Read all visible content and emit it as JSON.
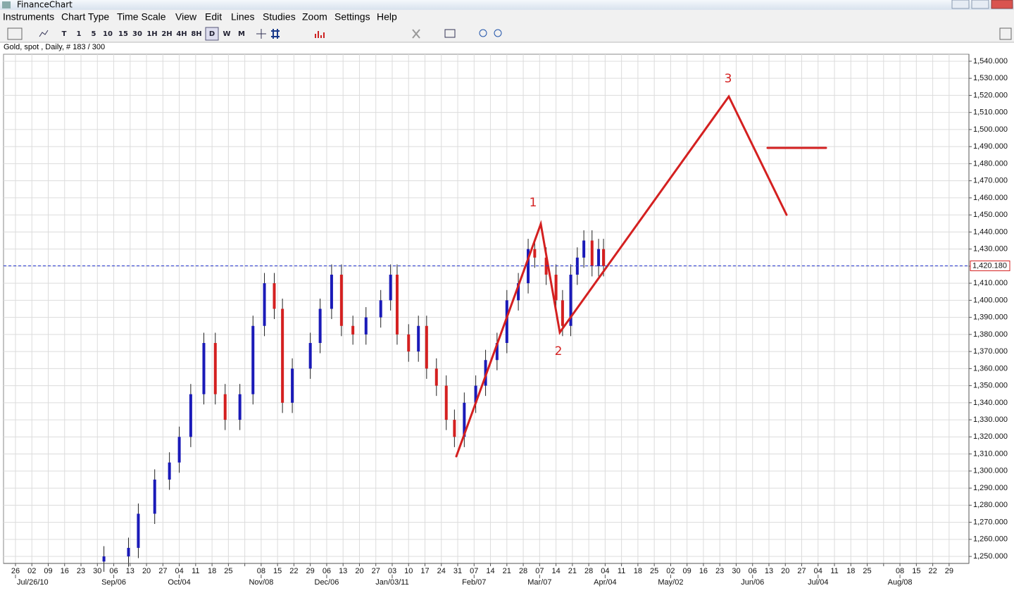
{
  "window_title": "FinanceChart",
  "menu": [
    "Instruments",
    "Chart Type",
    "Time Scale",
    "View",
    "Edit",
    "Lines",
    "Studies",
    "Zoom",
    "Settings",
    "Help"
  ],
  "toolbar": [
    "T",
    "1",
    "5",
    "10",
    "15",
    "30",
    "1H",
    "2H",
    "4H",
    "8H",
    "D",
    "W",
    "M"
  ],
  "chart_data": {
    "type": "candlestick",
    "title": "Gold, spot , Daily, # 183 / 300",
    "xlim": [
      -0.73,
      58.21
    ],
    "ylim": [
      1245.9,
      1544.1
    ],
    "yticks": [
      {
        "value": 1250,
        "label": "1,250.000"
      },
      {
        "value": 1260,
        "label": "1,260.000"
      },
      {
        "value": 1270,
        "label": "1,270.000"
      },
      {
        "value": 1280,
        "label": "1,280.000"
      },
      {
        "value": 1290,
        "label": "1,290.000"
      },
      {
        "value": 1300,
        "label": "1,300.000"
      },
      {
        "value": 1310,
        "label": "1,310.000"
      },
      {
        "value": 1320,
        "label": "1,320.000"
      },
      {
        "value": 1330,
        "label": "1,330.000"
      },
      {
        "value": 1340,
        "label": "1,340.000"
      },
      {
        "value": 1350,
        "label": "1,350.000"
      },
      {
        "value": 1360,
        "label": "1,360.000"
      },
      {
        "value": 1370,
        "label": "1,370.000"
      },
      {
        "value": 1380,
        "label": "1,380.000"
      },
      {
        "value": 1390,
        "label": "1,390.000"
      },
      {
        "value": 1400,
        "label": "1,400.000"
      },
      {
        "value": 1410,
        "label": "1,410.000"
      },
      {
        "value": 1420,
        "label": "1,420.000"
      },
      {
        "value": 1430,
        "label": "1,430.000"
      },
      {
        "value": 1440,
        "label": "1,440.000"
      },
      {
        "value": 1450,
        "label": "1,450.000"
      },
      {
        "value": 1460,
        "label": "1,460.000"
      },
      {
        "value": 1470,
        "label": "1,470.000"
      },
      {
        "value": 1480,
        "label": "1,480.000"
      },
      {
        "value": 1490,
        "label": "1,490.000"
      },
      {
        "value": 1500,
        "label": "1,500.000"
      },
      {
        "value": 1510,
        "label": "1,510.000"
      },
      {
        "value": 1520,
        "label": "1,520.000"
      },
      {
        "value": 1530,
        "label": "1,530.000"
      },
      {
        "value": 1540,
        "label": "1,540.000"
      }
    ],
    "categories": [
      "26",
      "02",
      "09",
      "16",
      "23",
      "30",
      "06",
      "13",
      "20",
      "27",
      "04",
      "11",
      "18",
      "25",
      null,
      "08",
      "15",
      "22",
      "29",
      "06",
      "13",
      "20",
      "27",
      "03",
      "10",
      "17",
      "24",
      "31",
      "07",
      "14",
      "21",
      "28",
      "07",
      "14",
      "21",
      "28",
      "04",
      "11",
      "18",
      "25",
      "02",
      "09",
      "16",
      "23",
      "30",
      "06",
      "13",
      "20",
      "27",
      "04",
      "11",
      "18",
      "25",
      null,
      "08",
      "15",
      "22",
      "29"
    ],
    "month_labels": [
      {
        "value": 0,
        "label": "Jul/26/10"
      },
      {
        "value": 6,
        "label": "Sep/06"
      },
      {
        "value": 10,
        "label": "Oct/04"
      },
      {
        "value": 15,
        "label": "Nov/08"
      },
      {
        "value": 19,
        "label": "Dec/06"
      },
      {
        "value": 23,
        "label": "Jan/03/11"
      },
      {
        "value": 28,
        "label": "Feb/07"
      },
      {
        "value": 32,
        "label": "Mar/07"
      },
      {
        "value": 36,
        "label": "Apr/04"
      },
      {
        "value": 40,
        "label": "May/02"
      },
      {
        "value": 45,
        "label": "Jun/06"
      },
      {
        "value": 49,
        "label": "Jul/04"
      },
      {
        "value": 54,
        "label": "Aug/08"
      }
    ],
    "grid": true,
    "up_color": "#1a1ab8",
    "down_color": "#d42020",
    "series": {
      "x": [
        5.4,
        6.9,
        7.5,
        8.5,
        9.4,
        10,
        10.7,
        11.5,
        12.2,
        12.8,
        13.7,
        14.5,
        15.2,
        15.8,
        16.3,
        16.9,
        18,
        18.6,
        19.3,
        19.9,
        20.6,
        21.4,
        22.3,
        22.9,
        23.3,
        24,
        24.6,
        25.1,
        25.7,
        26.3,
        26.8,
        27.4,
        28.1,
        28.7,
        29.4,
        30,
        30.7,
        31.3,
        31.7,
        32.4,
        33,
        33.4,
        33.9,
        34.3,
        34.7,
        35.2,
        35.6,
        35.9
      ],
      "open": [
        1247,
        1250,
        1255,
        1275,
        1295,
        1305,
        1320,
        1345,
        1375,
        1345,
        1330,
        1345,
        1385,
        1410,
        1395,
        1340,
        1360,
        1375,
        1395,
        1415,
        1385,
        1380,
        1390,
        1400,
        1415,
        1380,
        1370,
        1385,
        1360,
        1350,
        1330,
        1320,
        1340,
        1350,
        1365,
        1375,
        1400,
        1410,
        1430,
        1425,
        1415,
        1400,
        1385,
        1415,
        1425,
        1435,
        1420,
        1430
      ],
      "high": [
        1256,
        1261,
        1281,
        1301,
        1311,
        1326,
        1351,
        1381,
        1381,
        1351,
        1351,
        1391,
        1416,
        1416,
        1401,
        1366,
        1381,
        1401,
        1421,
        1421,
        1391,
        1396,
        1406,
        1421,
        1421,
        1386,
        1391,
        1391,
        1366,
        1356,
        1336,
        1346,
        1356,
        1371,
        1381,
        1406,
        1416,
        1436,
        1436,
        1431,
        1421,
        1406,
        1421,
        1431,
        1441,
        1441,
        1436,
        1436
      ],
      "low": [
        1241,
        1244,
        1249,
        1269,
        1289,
        1299,
        1314,
        1339,
        1339,
        1324,
        1324,
        1339,
        1379,
        1389,
        1334,
        1334,
        1354,
        1369,
        1389,
        1379,
        1374,
        1374,
        1384,
        1394,
        1374,
        1364,
        1364,
        1354,
        1344,
        1324,
        1314,
        1314,
        1334,
        1344,
        1359,
        1369,
        1394,
        1404,
        1419,
        1409,
        1394,
        1379,
        1379,
        1409,
        1419,
        1414,
        1414,
        1414
      ],
      "close": [
        1250,
        1255,
        1275,
        1295,
        1305,
        1320,
        1345,
        1375,
        1345,
        1330,
        1345,
        1385,
        1410,
        1395,
        1340,
        1360,
        1375,
        1395,
        1415,
        1385,
        1380,
        1390,
        1400,
        1415,
        1380,
        1370,
        1385,
        1360,
        1350,
        1330,
        1320,
        1340,
        1350,
        1365,
        1375,
        1400,
        1410,
        1430,
        1425,
        1415,
        1400,
        1385,
        1415,
        1425,
        1435,
        1420,
        1430,
        1420
      ]
    },
    "last_price": {
      "value": 1420.18,
      "label": "1,420.180"
    },
    "annotations": [
      "1",
      "2",
      "3"
    ]
  }
}
